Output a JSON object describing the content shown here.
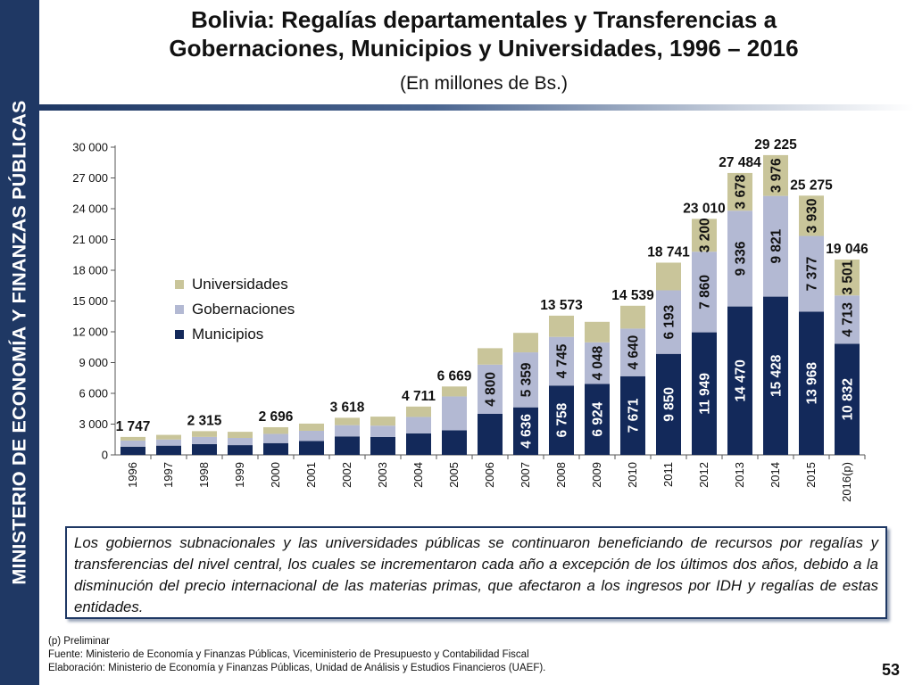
{
  "sidebar": {
    "label": "MINISTERIO DE ECONOMÍA Y FINANZAS PÚBLICAS"
  },
  "header": {
    "title_line1": "Bolivia: Regalías departamentales y Transferencias a",
    "title_line2": "Gobernaciones, Municipios y Universidades, 1996 – 2016",
    "subtitle": "(En millones de Bs.)"
  },
  "colors": {
    "municipios": "#13295a",
    "gobernaciones": "#b3b9d3",
    "universidades": "#c9c59a",
    "sidebar": "#1f3864"
  },
  "chart_data": {
    "type": "bar",
    "stacked": true,
    "ylim": [
      0,
      30000
    ],
    "yticks": [
      "0",
      "3 000",
      "6 000",
      "9 000",
      "12 000",
      "15 000",
      "18 000",
      "21 000",
      "24 000",
      "27 000",
      "30 000"
    ],
    "grid": false,
    "legend_position": "upper-left",
    "categories": [
      "1996",
      "1997",
      "1998",
      "1999",
      "2000",
      "2001",
      "2002",
      "2003",
      "2004",
      "2005",
      "2006",
      "2007",
      "2008",
      "2009",
      "2010",
      "2011",
      "2012",
      "2013",
      "2014",
      "2015",
      "2016(p)"
    ],
    "series": [
      {
        "name": "Municipios",
        "values": [
          800,
          900,
          1050,
          950,
          1150,
          1350,
          1800,
          1750,
          2100,
          2400,
          4000,
          4636,
          6758,
          6924,
          7671,
          9850,
          11949,
          14470,
          15428,
          13968,
          10832
        ],
        "labels": [
          "",
          "",
          "",
          "",
          "",
          "",
          "",
          "",
          "",
          "",
          "",
          "4 636",
          "6 758",
          "6 924",
          "7 671",
          "9 850",
          "11 949",
          "14 470",
          "15 428",
          "13 968",
          "10 832"
        ]
      },
      {
        "name": "Gobernaciones",
        "values": [
          600,
          600,
          700,
          700,
          900,
          1000,
          1100,
          1100,
          1600,
          3300,
          4800,
          5359,
          4745,
          4048,
          4640,
          6193,
          7860,
          9336,
          9821,
          7377,
          4713
        ],
        "labels": [
          "",
          "",
          "",
          "",
          "",
          "",
          "",
          "",
          "",
          "",
          "4 800",
          "5 359",
          "4 745",
          "4 048",
          "4 640",
          "6 193",
          "7 860",
          "9 336",
          "9 821",
          "7 377",
          "4 713"
        ]
      },
      {
        "name": "Universidades",
        "values": [
          347,
          450,
          565,
          600,
          646,
          700,
          718,
          880,
          1011,
          969,
          1600,
          1900,
          2070,
          2000,
          2228,
          2698,
          3200,
          3678,
          3976,
          3930,
          3501
        ],
        "labels": [
          "",
          "",
          "",
          "",
          "",
          "",
          "",
          "",
          "",
          "",
          "",
          "",
          "",
          "",
          "",
          "",
          "3 200",
          "3 678",
          "3 976",
          "3 930",
          "3 501"
        ]
      }
    ],
    "totals": [
      "1 747",
      "",
      "2 315",
      "",
      "2 696",
      "",
      "3 618",
      "",
      "4 711",
      "6 669",
      "",
      "",
      "13 573",
      "",
      "14 539",
      "18 741",
      "23 010",
      "27 484",
      "29 225",
      "25 275",
      "19 046"
    ]
  },
  "note": "Los gobiernos subnacionales y las universidades públicas se continuaron beneficiando de recursos por regalías y transferencias del nivel central, los cuales se incrementaron cada año a excepción de los últimos dos años, debido a la disminución del precio internacional de las materias primas, que afectaron a los ingresos por IDH y regalías de estas entidades.",
  "footnotes": {
    "preliminar": "(p) Preliminar",
    "fuente": "Fuente: Ministerio de Economía y Finanzas Públicas, Viceministerio de Presupuesto y Contabilidad Fiscal",
    "elaboracion": "Elaboración: Ministerio de Economía y Finanzas Públicas, Unidad de Análisis y Estudios Financieros (UAEF)."
  },
  "page_number": "53"
}
